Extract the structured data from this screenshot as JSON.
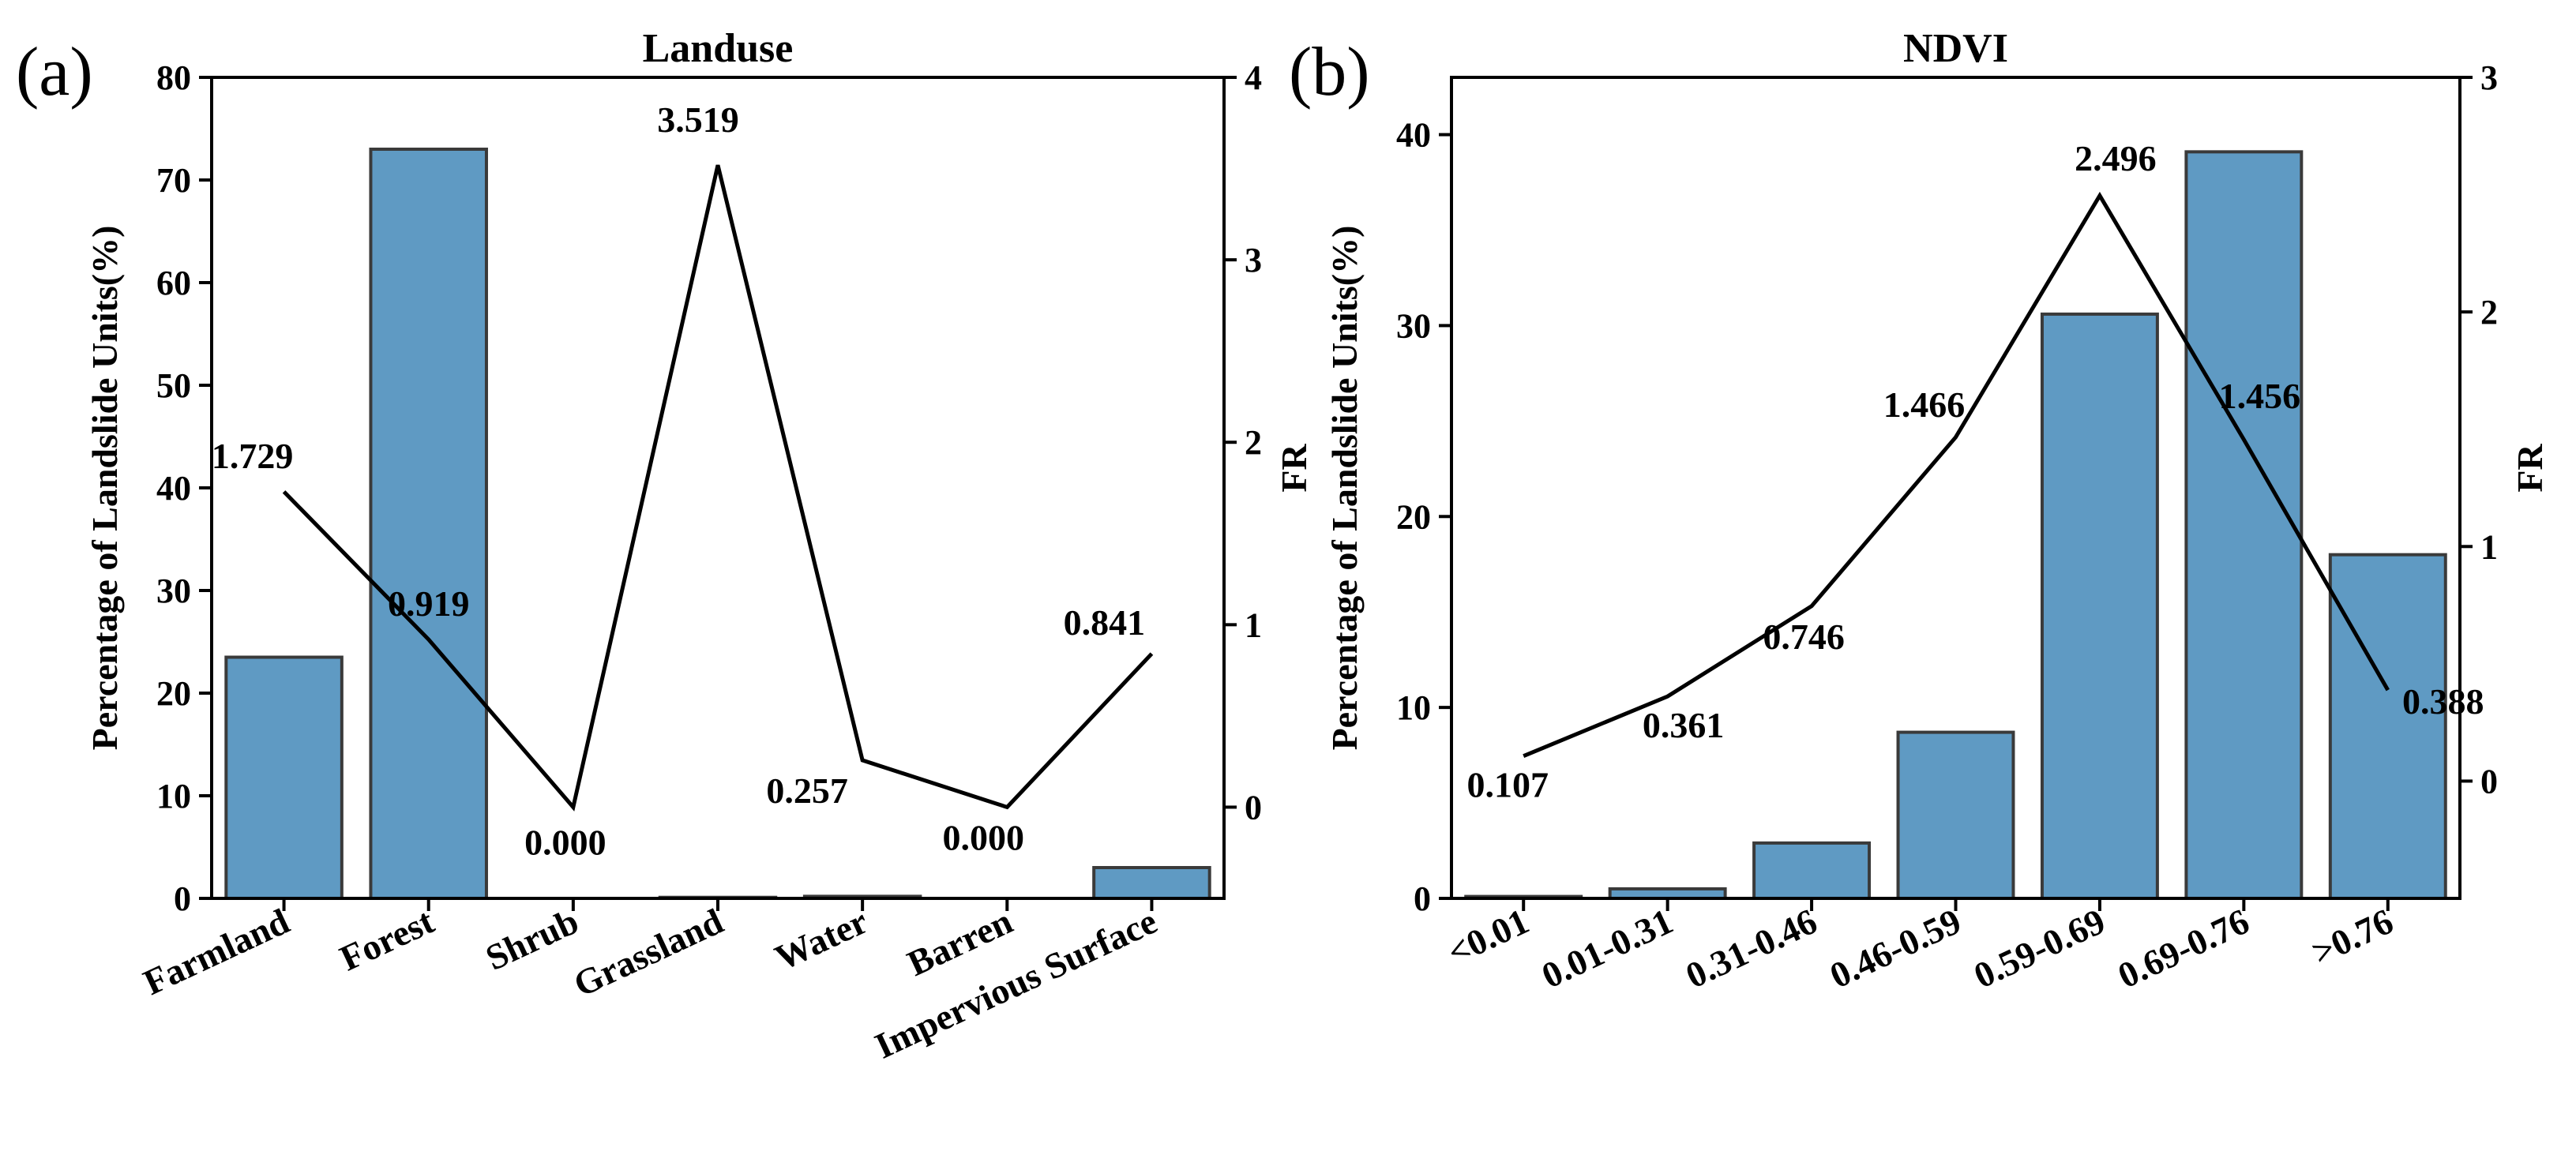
{
  "colors": {
    "bar": "#5f9ac3",
    "bar_edge": "#3a3a3a",
    "line": "#000000"
  },
  "chart_data": [
    {
      "type": "bar",
      "panel_label": "(a)",
      "title": "Landuse",
      "categories": [
        "Farmland",
        "Forest",
        "Shrub",
        "Grassland",
        "Water",
        "Barren",
        "Impervious Surface"
      ],
      "ylabel": "Percentage of Landslide Units(%)",
      "y2label": "FR",
      "ylim": [
        0,
        80
      ],
      "yticks": [
        0,
        10,
        20,
        30,
        40,
        50,
        60,
        70,
        80
      ],
      "y2lim": [
        -0.5,
        4
      ],
      "y2ticks": [
        0,
        1,
        2,
        3,
        4
      ],
      "series": [
        {
          "name": "Percentage of Landslide Units(%)",
          "kind": "bar",
          "axis": "left",
          "values": [
            23.5,
            73.0,
            0.0,
            0.1,
            0.2,
            0.0,
            3.0
          ]
        },
        {
          "name": "FR",
          "kind": "line",
          "axis": "right",
          "values": [
            1.729,
            0.919,
            0.0,
            3.519,
            0.257,
            0.0,
            0.841
          ],
          "labels": [
            "1.729",
            "0.919",
            "0.000",
            "3.519",
            "0.257",
            "0.000",
            "0.841"
          ]
        }
      ]
    },
    {
      "type": "bar",
      "panel_label": "(b)",
      "title": "NDVI",
      "categories": [
        "<0.01",
        "0.01-0.31",
        "0.31-0.46",
        "0.46-0.59",
        "0.59-0.69",
        "0.69-0.76",
        ">0.76"
      ],
      "ylabel": "Percentage of Landslide Units(%)",
      "y2label": "FR",
      "ylim": [
        0,
        43
      ],
      "yticks": [
        0,
        10,
        20,
        30,
        40
      ],
      "y2lim": [
        -0.5,
        3
      ],
      "y2ticks": [
        0,
        1,
        2,
        3
      ],
      "series": [
        {
          "name": "Percentage of Landslide Units(%)",
          "kind": "bar",
          "axis": "left",
          "values": [
            0.1,
            0.5,
            2.9,
            8.7,
            30.6,
            39.1,
            18.0
          ]
        },
        {
          "name": "FR",
          "kind": "line",
          "axis": "right",
          "values": [
            0.107,
            0.361,
            0.746,
            1.466,
            2.496,
            1.456,
            0.388
          ],
          "labels": [
            "0.107",
            "0.361",
            "0.746",
            "1.466",
            "2.496",
            "1.456",
            "0.388"
          ]
        }
      ]
    }
  ]
}
